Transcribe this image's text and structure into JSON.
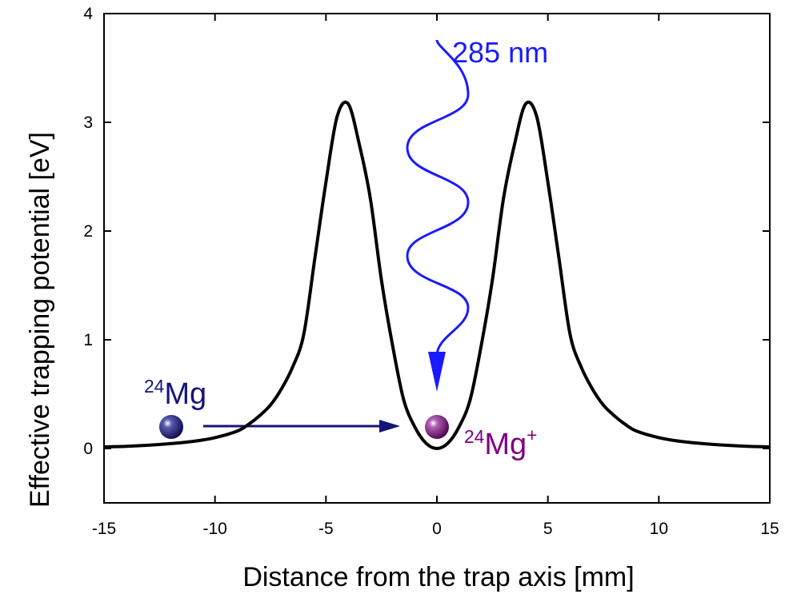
{
  "chart_data": {
    "type": "line",
    "xlabel": "Distance from the trap axis [mm]",
    "ylabel": "Effective trapping potential [eV]",
    "xlim": [
      -15,
      15
    ],
    "ylim": [
      -0.5,
      4
    ],
    "xticks": [
      -15,
      -10,
      -5,
      0,
      5,
      10,
      15
    ],
    "yticks": [
      0,
      1,
      2,
      3,
      4
    ],
    "series": [
      {
        "color": "#000000",
        "x": [
          -15,
          -14,
          -13,
          -12,
          -11,
          -10,
          -9,
          -8.5,
          -8,
          -7.5,
          -7,
          -6.5,
          -6,
          -5.5,
          -5,
          -4.5,
          -4,
          -3.5,
          -3,
          -2.5,
          -2,
          -1.5,
          -1,
          -0.5,
          0,
          0.5,
          1,
          1.5,
          2,
          2.5,
          3,
          3.5,
          4,
          4.5,
          5,
          5.5,
          6,
          6.5,
          7,
          7.5,
          8,
          8.5,
          9,
          10,
          11,
          12,
          13,
          14,
          15
        ],
        "values": [
          0.015,
          0.02,
          0.03,
          0.045,
          0.065,
          0.1,
          0.16,
          0.22,
          0.3,
          0.4,
          0.55,
          0.75,
          1.05,
          1.75,
          2.45,
          3.05,
          3.17,
          2.8,
          2.3,
          1.55,
          0.95,
          0.45,
          0.2,
          0.05,
          0,
          0.05,
          0.2,
          0.45,
          0.95,
          1.55,
          2.3,
          2.8,
          3.17,
          3.05,
          2.45,
          1.75,
          1.05,
          0.75,
          0.55,
          0.4,
          0.3,
          0.22,
          0.16,
          0.1,
          0.065,
          0.045,
          0.03,
          0.02,
          0.015
        ]
      }
    ],
    "annotations": [
      {
        "text": "285 nm",
        "color": "#1a1aff"
      },
      {
        "sup": "24",
        "text": "Mg",
        "color": "#14147a"
      },
      {
        "sup": "24",
        "text": "Mg",
        "sup_after": "+",
        "color": "#800080"
      }
    ]
  }
}
